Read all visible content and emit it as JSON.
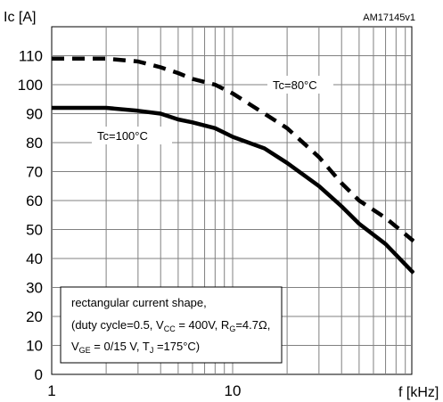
{
  "chart_data": {
    "type": "line",
    "title": "",
    "reference_code": "AM17145v1",
    "ylabel": "Ic [A]",
    "xlabel": "f [kHz]",
    "xscale": "log",
    "xlim": [
      1,
      100
    ],
    "ylim": [
      0,
      120
    ],
    "grid": true,
    "xticks": [
      1,
      10
    ],
    "xtick_labels": [
      "1",
      "10"
    ],
    "yticks": [
      0,
      10,
      20,
      30,
      40,
      50,
      60,
      70,
      80,
      90,
      100,
      110
    ],
    "ytick_labels": [
      "0",
      "10",
      "20",
      "30",
      "40",
      "50",
      "60",
      "70",
      "80",
      "90",
      "100",
      "110"
    ],
    "series": [
      {
        "name": "Tc=80°C",
        "style": "dashed",
        "color": "#000000",
        "x": [
          1,
          2,
          3,
          4,
          5,
          6,
          8,
          10,
          15,
          20,
          30,
          40,
          50,
          70,
          100
        ],
        "y": [
          109,
          109,
          108,
          106,
          104,
          102,
          100,
          97,
          90,
          85,
          75,
          66,
          60,
          54,
          46
        ]
      },
      {
        "name": "Tc=100°C",
        "style": "solid",
        "color": "#000000",
        "x": [
          1,
          2,
          3,
          4,
          5,
          6,
          8,
          10,
          15,
          20,
          30,
          40,
          50,
          70,
          100
        ],
        "y": [
          92,
          92,
          91,
          90,
          88,
          87,
          85,
          82,
          78,
          73,
          65,
          58,
          52,
          45,
          35
        ]
      }
    ],
    "annotation": {
      "line1": "rectangular current shape,",
      "line2": [
        "(duty cycle=0.5, V",
        "CC",
        " = 400V, R",
        "G",
        "=4.7Ω,"
      ],
      "line3": [
        "V",
        "GE",
        " = 0/15 V, T",
        "J",
        " =175°C)"
      ]
    }
  }
}
